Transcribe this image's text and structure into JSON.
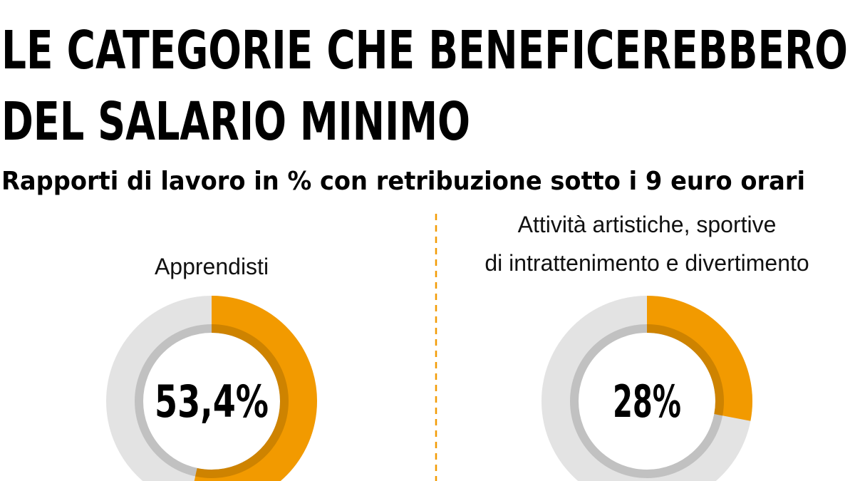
{
  "header": {
    "title": [
      "LE CATEGORIE CHE BENEFICEREBBERO",
      "DEL SALARIO MINIMO"
    ],
    "subtitle": "Rapporti di lavoro in % con retribuzione sotto i 9 euro orari"
  },
  "chart_data": [
    {
      "type": "donut",
      "title": [
        "Apprendisti"
      ],
      "values": [
        53.4
      ],
      "value_labels": [
        "53,4%"
      ],
      "color": "#f29a00",
      "track_color": "#e3e3e3"
    },
    {
      "type": "donut",
      "title": [
        "Attività artistiche, sportive",
        "di intrattenimento e divertimento"
      ],
      "values": [
        28
      ],
      "value_labels": [
        "28%"
      ],
      "color": "#f29a00",
      "track_color": "#e3e3e3"
    }
  ]
}
